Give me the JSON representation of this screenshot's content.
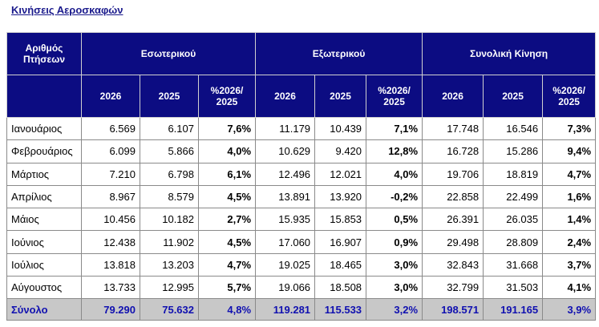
{
  "title": "Κινήσεις Αεροσκαφών",
  "headers": {
    "row_label": "Αριθμός Πτήσεων",
    "groups": [
      "Εσωτερικού",
      "Εξωτερικού",
      "Συνολική Κίνηση"
    ],
    "sub": [
      "2026",
      "2025",
      "%2026/ 2025"
    ]
  },
  "rows": [
    {
      "month": "Ιανουάριος",
      "v": [
        "6.569",
        "6.107",
        "7,6%",
        "11.179",
        "10.439",
        "7,1%",
        "17.748",
        "16.546",
        "7,3%"
      ]
    },
    {
      "month": "Φεβρουάριος",
      "v": [
        "6.099",
        "5.866",
        "4,0%",
        "10.629",
        "9.420",
        "12,8%",
        "16.728",
        "15.286",
        "9,4%"
      ]
    },
    {
      "month": "Μάρτιος",
      "v": [
        "7.210",
        "6.798",
        "6,1%",
        "12.496",
        "12.021",
        "4,0%",
        "19.706",
        "18.819",
        "4,7%"
      ]
    },
    {
      "month": "Απρίλιος",
      "v": [
        "8.967",
        "8.579",
        "4,5%",
        "13.891",
        "13.920",
        "-0,2%",
        "22.858",
        "22.499",
        "1,6%"
      ]
    },
    {
      "month": "Μάιος",
      "v": [
        "10.456",
        "10.182",
        "2,7%",
        "15.935",
        "15.853",
        "0,5%",
        "26.391",
        "26.035",
        "1,4%"
      ]
    },
    {
      "month": "Ιούνιος",
      "v": [
        "12.438",
        "11.902",
        "4,5%",
        "17.060",
        "16.907",
        "0,9%",
        "29.498",
        "28.809",
        "2,4%"
      ]
    },
    {
      "month": "Ιούλιος",
      "v": [
        "13.818",
        "13.203",
        "4,7%",
        "19.025",
        "18.465",
        "3,0%",
        "32.843",
        "31.668",
        "3,7%"
      ]
    },
    {
      "month": "Αύγουστος",
      "v": [
        "13.733",
        "12.995",
        "5,7%",
        "19.066",
        "18.508",
        "3,0%",
        "32.799",
        "31.503",
        "4,1%"
      ]
    }
  ],
  "total": {
    "month": "Σύνολο",
    "v": [
      "79.290",
      "75.632",
      "4,8%",
      "119.281",
      "115.533",
      "3,2%",
      "198.571",
      "191.165",
      "3,9%"
    ]
  }
}
